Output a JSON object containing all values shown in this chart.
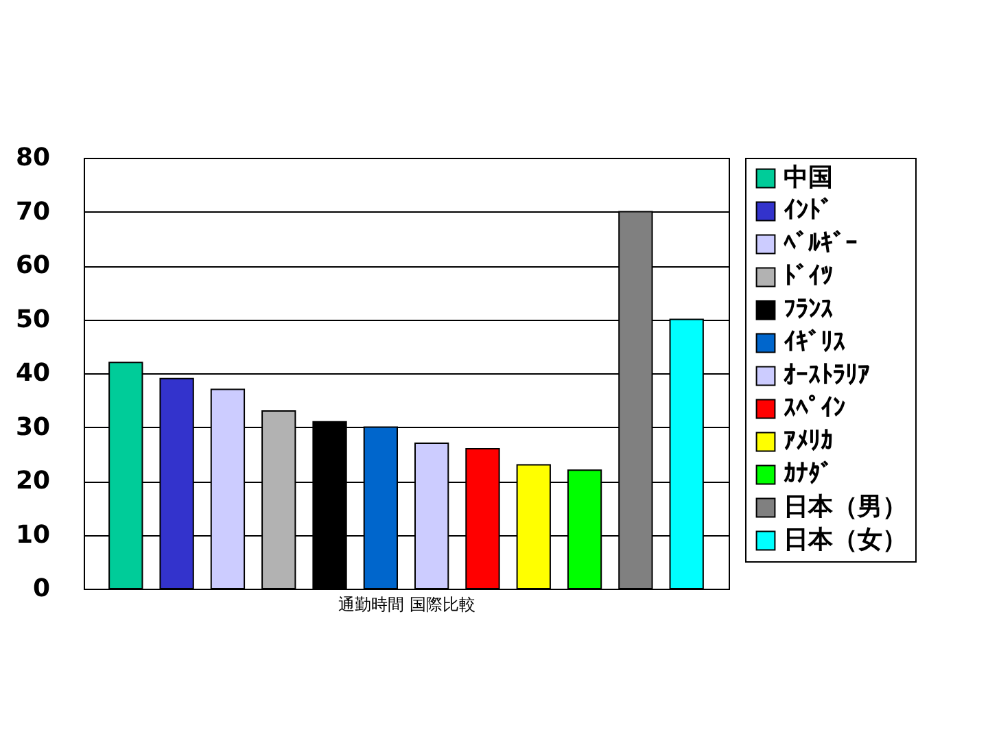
{
  "chart_data": {
    "type": "bar",
    "categories": [
      "通勤時間 国際比較"
    ],
    "series": [
      {
        "name": "中国",
        "color": "#00cc99",
        "values": [
          42
        ]
      },
      {
        "name": "ｲﾝﾄﾞ",
        "color": "#3333cc",
        "values": [
          39
        ]
      },
      {
        "name": "ﾍﾞﾙｷﾞｰ",
        "color": "#ccccff",
        "values": [
          37
        ]
      },
      {
        "name": "ﾄﾞｲﾂ",
        "color": "#b2b2b2",
        "values": [
          33
        ]
      },
      {
        "name": "ﾌﾗﾝｽ",
        "color": "#000000",
        "values": [
          31
        ]
      },
      {
        "name": "ｲｷﾞﾘｽ",
        "color": "#0066cc",
        "values": [
          30
        ]
      },
      {
        "name": "ｵｰｽﾄﾗﾘｱ",
        "color": "#ccccff",
        "values": [
          27
        ]
      },
      {
        "name": "ｽﾍﾟｲﾝ",
        "color": "#ff0000",
        "values": [
          26
        ]
      },
      {
        "name": "ｱﾒﾘｶ",
        "color": "#ffff00",
        "values": [
          23
        ]
      },
      {
        "name": "ｶﾅﾀﾞ",
        "color": "#00ff00",
        "values": [
          22
        ]
      },
      {
        "name": "日本（男）",
        "color": "#808080",
        "values": [
          70
        ]
      },
      {
        "name": "日本（女）",
        "color": "#00ffff",
        "values": [
          50
        ]
      }
    ],
    "ylim": [
      0,
      80
    ],
    "yticks": [
      0,
      10,
      20,
      30,
      40,
      50,
      60,
      70,
      80
    ],
    "grid": "y",
    "legend": "right"
  }
}
